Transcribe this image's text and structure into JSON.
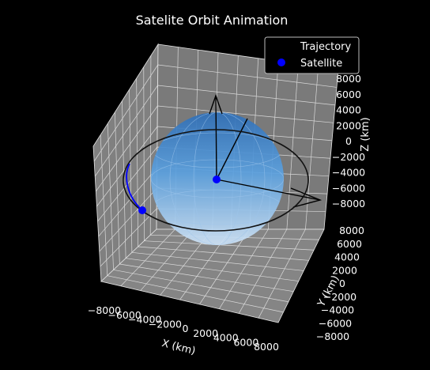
{
  "chart_data": {
    "type": "scatter",
    "title": "Satelite Orbit Animation",
    "xlabel": "X (km)",
    "ylabel": "Y (km)",
    "zlabel": "Z (km)",
    "xlim": [
      -9000,
      9000
    ],
    "ylim": [
      -8000,
      9000
    ],
    "zlim": [
      -8000,
      8000
    ],
    "x_ticks": [
      -8000,
      -6000,
      -4000,
      -2000,
      0,
      2000,
      4000,
      6000,
      8000
    ],
    "y_ticks": [
      -8000,
      -6000,
      -4000,
      -2000,
      0,
      2000,
      4000,
      6000,
      8000
    ],
    "z_ticks": [
      -8000,
      -6000,
      -4000,
      -2000,
      0,
      2000,
      4000,
      6000,
      8000
    ],
    "grid": true,
    "legend": {
      "placement": "top-right",
      "entries": [
        "Trajectory",
        "Satellite"
      ]
    },
    "series": [
      {
        "name": "Trajectory",
        "color": "#000000"
      },
      {
        "name": "Satellite",
        "color": "#0000ff"
      }
    ],
    "orbit_radius_km": 7000,
    "earth_radius_km": 6371,
    "earth_color": "#3a8fd9",
    "pane_color": "#808080",
    "grid_color": "#e0e0e0"
  }
}
